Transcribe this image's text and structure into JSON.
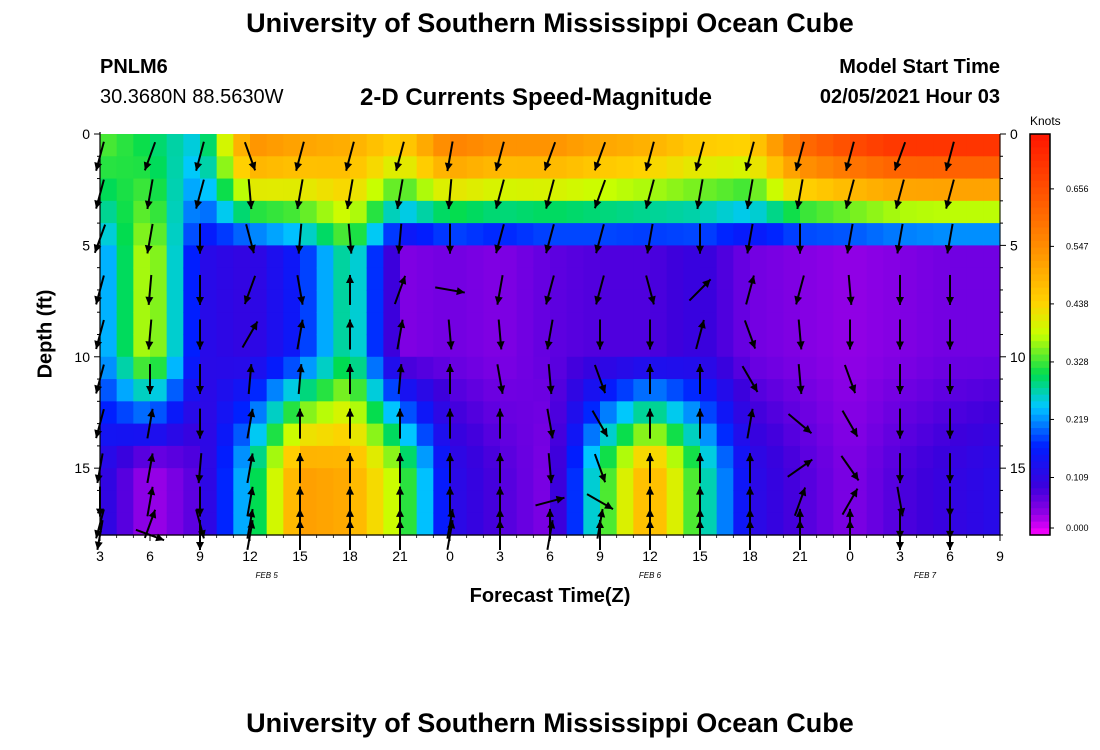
{
  "page": {
    "title_top": "University of Southern Mississippi Ocean Cube",
    "title_bottom": "University of Southern Mississippi Ocean Cube",
    "station_id": "PNLM6",
    "station_coords": "30.3680N 88.5630W",
    "subtitle": "2-D Currents Speed-Magnitude",
    "model_start_label": "Model Start Time",
    "model_start_value": "02/05/2021 Hour 03"
  },
  "chart_data": {
    "type": "heatmap",
    "title": "2-D Currents Speed-Magnitude",
    "xlabel": "Forecast Time(Z)",
    "ylabel": "Depth (ft)",
    "colorbar_unit": "Knots",
    "colorbar_ticks": [
      "0.656",
      "0.547",
      "0.438",
      "0.328",
      "0.219",
      "0.109",
      "0.000"
    ],
    "colorbar_range": [
      0.0,
      0.76
    ],
    "x_range_hours": [
      0,
      54
    ],
    "x_tick_labels": [
      "3",
      "6",
      "9",
      "12",
      "15",
      "18",
      "21",
      "0",
      "3",
      "6",
      "9",
      "12",
      "15",
      "18",
      "21",
      "0",
      "3",
      "6",
      "9"
    ],
    "date_labels": [
      {
        "text": "FEB 5",
        "hour": 10
      },
      {
        "text": "FEB 6",
        "hour": 33
      },
      {
        "text": "FEB 7",
        "hour": 49.5
      }
    ],
    "y_range_ft": [
      0,
      18
    ],
    "y_tick_labels": [
      "0",
      "5",
      "10",
      "15"
    ],
    "y_tick_values": [
      0,
      5,
      10,
      15
    ],
    "depth_levels_ft": [
      0,
      1,
      2,
      3,
      4,
      5,
      6,
      7,
      8,
      9,
      10,
      11,
      12,
      13,
      14,
      15,
      16,
      17,
      18
    ],
    "speed_profile_knots": [
      {
        "hour": 0,
        "top": 0.34,
        "mid": 0.2,
        "bottom": 0.12
      },
      {
        "hour": 3,
        "top": 0.3,
        "mid": 0.4,
        "bottom": 0.03
      },
      {
        "hour": 6,
        "top": 0.25,
        "mid": 0.12,
        "bottom": 0.08
      },
      {
        "hour": 9,
        "top": 0.55,
        "mid": 0.1,
        "bottom": 0.26
      },
      {
        "hour": 12,
        "top": 0.52,
        "mid": 0.16,
        "bottom": 0.52
      },
      {
        "hour": 15,
        "top": 0.5,
        "mid": 0.3,
        "bottom": 0.5
      },
      {
        "hour": 18,
        "top": 0.45,
        "mid": 0.05,
        "bottom": 0.36
      },
      {
        "hour": 21,
        "top": 0.58,
        "mid": 0.06,
        "bottom": 0.12
      },
      {
        "hour": 24,
        "top": 0.55,
        "mid": 0.05,
        "bottom": 0.08
      },
      {
        "hour": 27,
        "top": 0.55,
        "mid": 0.07,
        "bottom": 0.05
      },
      {
        "hour": 30,
        "top": 0.52,
        "mid": 0.08,
        "bottom": 0.3
      },
      {
        "hour": 33,
        "top": 0.5,
        "mid": 0.08,
        "bottom": 0.5
      },
      {
        "hour": 36,
        "top": 0.46,
        "mid": 0.1,
        "bottom": 0.3
      },
      {
        "hour": 39,
        "top": 0.45,
        "mid": 0.06,
        "bottom": 0.12
      },
      {
        "hour": 42,
        "top": 0.62,
        "mid": 0.05,
        "bottom": 0.08
      },
      {
        "hour": 45,
        "top": 0.68,
        "mid": 0.04,
        "bottom": 0.05
      },
      {
        "hour": 48,
        "top": 0.72,
        "mid": 0.05,
        "bottom": 0.08
      },
      {
        "hour": 51,
        "top": 0.72,
        "mid": 0.06,
        "bottom": 0.1
      },
      {
        "hour": 54,
        "top": 0.72,
        "mid": 0.06,
        "bottom": 0.12
      }
    ],
    "vectors_note": "direction in degrees clockwise from north (up), length relative 0-1",
    "vectors": [
      {
        "hour": 3,
        "dirs": [
          195,
          195,
          200,
          195,
          195,
          195,
          195,
          190,
          180,
          195,
          190
        ]
      },
      {
        "hour": 6,
        "dirs": [
          200,
          190,
          190,
          185,
          185,
          180,
          10,
          10,
          10,
          20,
          110
        ]
      },
      {
        "hour": 9,
        "dirs": [
          195,
          195,
          180,
          180,
          180,
          180,
          180,
          185,
          180,
          165,
          180
        ]
      },
      {
        "hour": 12,
        "dirs": [
          160,
          175,
          165,
          200,
          30,
          5,
          10,
          10,
          10,
          10,
          10
        ]
      },
      {
        "hour": 15,
        "dirs": [
          195,
          190,
          185,
          170,
          10,
          5,
          0,
          0,
          0,
          0,
          0
        ]
      },
      {
        "hour": 18,
        "dirs": [
          195,
          190,
          175,
          0,
          0,
          0,
          0,
          0,
          0,
          0,
          0
        ]
      },
      {
        "hour": 21,
        "dirs": [
          195,
          190,
          185,
          20,
          10,
          5,
          0,
          0,
          0,
          0,
          0
        ]
      },
      {
        "hour": 24,
        "dirs": [
          190,
          185,
          180,
          100,
          175,
          0,
          0,
          0,
          0,
          10,
          10
        ]
      },
      {
        "hour": 27,
        "dirs": [
          195,
          195,
          195,
          190,
          175,
          170,
          0,
          0,
          0,
          0,
          0
        ]
      },
      {
        "hour": 30,
        "dirs": [
          200,
          195,
          195,
          195,
          190,
          175,
          170,
          175,
          75,
          0,
          10
        ]
      },
      {
        "hour": 33,
        "dirs": [
          200,
          200,
          195,
          195,
          180,
          160,
          150,
          160,
          120,
          10,
          0
        ]
      },
      {
        "hour": 36,
        "dirs": [
          195,
          195,
          190,
          165,
          180,
          0,
          0,
          0,
          0,
          0,
          0
        ]
      },
      {
        "hour": 39,
        "dirs": [
          195,
          190,
          180,
          45,
          15,
          0,
          0,
          0,
          0,
          0,
          0
        ]
      },
      {
        "hour": 42,
        "dirs": [
          195,
          190,
          190,
          15,
          160,
          150,
          10,
          0,
          0,
          0,
          0
        ]
      },
      {
        "hour": 45,
        "dirs": [
          195,
          190,
          180,
          195,
          175,
          175,
          130,
          55,
          20,
          0,
          0
        ]
      },
      {
        "hour": 48,
        "dirs": [
          195,
          195,
          190,
          175,
          180,
          160,
          150,
          145,
          30,
          0,
          0
        ]
      },
      {
        "hour": 51,
        "dirs": [
          200,
          195,
          190,
          180,
          180,
          180,
          180,
          180,
          170,
          180,
          180
        ]
      },
      {
        "hour": 54,
        "dirs": [
          195,
          195,
          190,
          180,
          180,
          180,
          180,
          180,
          180,
          180,
          180
        ]
      }
    ]
  }
}
